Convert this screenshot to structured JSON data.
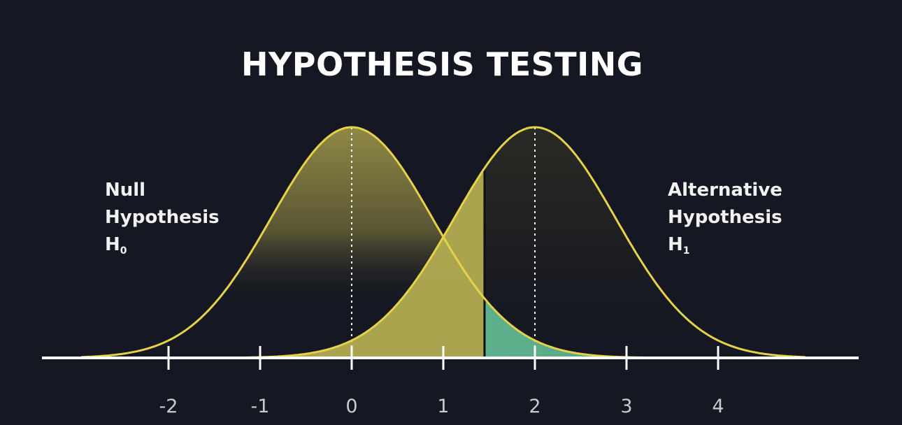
{
  "title": "HYPOTHESIS TESTING",
  "null_hypothesis": {
    "line1": "Null",
    "line2": "Hypothesis",
    "symbol": "H",
    "subscript": "0",
    "mean": 0
  },
  "alternative_hypothesis": {
    "line1": "Alternative",
    "line2": "Hypothesis",
    "symbol": "H",
    "subscript": "1",
    "mean": 2
  },
  "critical_value": 1.45,
  "axis": {
    "ticks": [
      -2,
      -1,
      0,
      1,
      2,
      3,
      4
    ],
    "tick_labels": [
      "-2",
      "-1",
      "0",
      "1",
      "2",
      "3",
      "4"
    ]
  },
  "colors": {
    "background": "#151722",
    "curve_stroke": "#e6d24a",
    "fill_olive": "#8f8845",
    "fill_yellow": "#b3ac52",
    "fill_teal": "#5fb08c",
    "axis": "#ffffff"
  }
}
